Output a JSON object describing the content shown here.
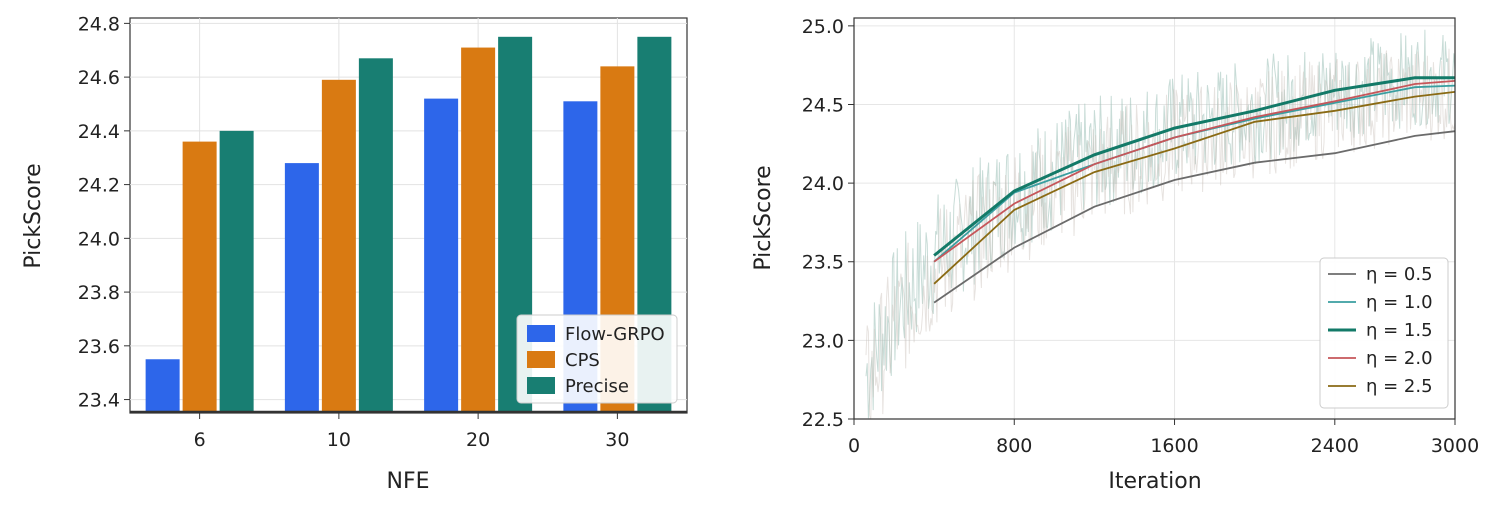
{
  "chart_data": [
    {
      "type": "bar",
      "xlabel": "NFE",
      "ylabel": "PickScore",
      "categories": [
        "6",
        "10",
        "20",
        "30"
      ],
      "ylim": [
        23.35,
        24.82
      ],
      "yticks": [
        "23.4",
        "23.6",
        "23.8",
        "24.0",
        "24.2",
        "24.4",
        "24.6",
        "24.8"
      ],
      "grid": true,
      "legend_position": "bottom-right",
      "series": [
        {
          "name": "Flow-GRPO",
          "color": "#2d66ea",
          "values": [
            23.55,
            24.28,
            24.52,
            24.51
          ]
        },
        {
          "name": "CPS",
          "color": "#d97a12",
          "values": [
            24.36,
            24.59,
            24.71,
            24.64
          ]
        },
        {
          "name": "Precise",
          "color": "#187e72",
          "values": [
            24.4,
            24.67,
            24.75,
            24.75
          ]
        }
      ]
    },
    {
      "type": "line",
      "xlabel": "Iteration",
      "ylabel": "PickScore",
      "xlim": [
        0,
        3000
      ],
      "ylim": [
        22.5,
        25.05
      ],
      "xticks": [
        "0",
        "800",
        "1600",
        "2400",
        "3000"
      ],
      "yticks": [
        "22.5",
        "23.0",
        "23.5",
        "24.0",
        "24.5",
        "25.0"
      ],
      "grid": true,
      "legend_position": "bottom-right",
      "x": [
        400,
        800,
        1200,
        1600,
        2000,
        2400,
        2800,
        3000
      ],
      "series": [
        {
          "name": "η = 0.5",
          "color": "#6b6b6b",
          "values": [
            23.24,
            23.59,
            23.85,
            24.02,
            24.13,
            24.19,
            24.3,
            24.33
          ]
        },
        {
          "name": "η = 1.0",
          "color": "#3a9ea0",
          "values": [
            23.5,
            23.94,
            24.12,
            24.29,
            24.41,
            24.51,
            24.61,
            24.62
          ]
        },
        {
          "name": "η = 1.5",
          "color": "#137a68",
          "values": [
            23.54,
            23.95,
            24.18,
            24.35,
            24.46,
            24.59,
            24.67,
            24.67
          ]
        },
        {
          "name": "η = 2.0",
          "color": "#c6565a",
          "values": [
            23.5,
            23.87,
            24.12,
            24.29,
            24.42,
            24.52,
            24.63,
            24.65
          ]
        },
        {
          "name": "η = 2.5",
          "color": "#8a6a14",
          "values": [
            23.36,
            23.83,
            24.07,
            24.22,
            24.39,
            24.46,
            24.55,
            24.58
          ]
        }
      ]
    }
  ]
}
